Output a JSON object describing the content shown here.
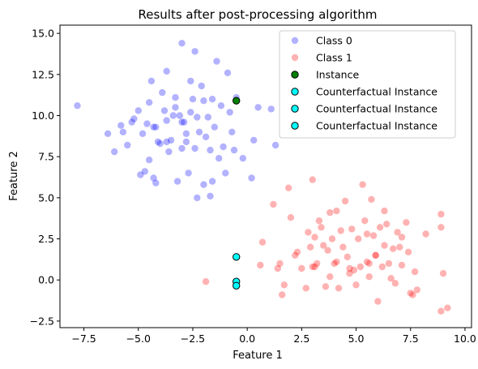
{
  "chart_data": {
    "type": "scatter",
    "title": "Results after post-processing algorithm",
    "xlabel": "Feature 1",
    "ylabel": "Feature 2",
    "xlim": [
      -8.6,
      10.3
    ],
    "ylim": [
      -2.9,
      15.5
    ],
    "xticks": [
      -7.5,
      -5.0,
      -2.5,
      0.0,
      2.5,
      5.0,
      7.5,
      10.0
    ],
    "xtick_labels": [
      "−7.5",
      "−5.0",
      "−2.5",
      "0.0",
      "2.5",
      "5.0",
      "7.5",
      "10.0"
    ],
    "yticks": [
      -2.5,
      0.0,
      2.5,
      5.0,
      7.5,
      10.0,
      12.5,
      15.0
    ],
    "ytick_labels": [
      "−2.5",
      "0.0",
      "2.5",
      "5.0",
      "7.5",
      "10.0",
      "12.5",
      "15.0"
    ],
    "grid": false,
    "legend_position": "top-right",
    "series": [
      {
        "name": "Class 0",
        "color": "#0000ff",
        "alpha": 0.3,
        "edge": "none",
        "points": [
          [
            -7.8,
            10.6
          ],
          [
            -6.4,
            8.9
          ],
          [
            -6.1,
            7.8
          ],
          [
            -5.8,
            9.4
          ],
          [
            -5.7,
            9.0
          ],
          [
            -5.5,
            8.2
          ],
          [
            -5.3,
            9.6
          ],
          [
            -5.2,
            9.8
          ],
          [
            -5.0,
            10.3
          ],
          [
            -4.9,
            6.4
          ],
          [
            -4.8,
            8.9
          ],
          [
            -4.7,
            6.6
          ],
          [
            -4.6,
            9.5
          ],
          [
            -4.5,
            10.8
          ],
          [
            -4.5,
            7.3
          ],
          [
            -4.4,
            12.1
          ],
          [
            -4.3,
            6.2
          ],
          [
            -4.3,
            9.3
          ],
          [
            -4.2,
            5.9
          ],
          [
            -4.1,
            8.4
          ],
          [
            -4.0,
            8.3
          ],
          [
            -3.9,
            11.4
          ],
          [
            -3.8,
            10.3
          ],
          [
            -3.7,
            12.7
          ],
          [
            -3.7,
            9.7
          ],
          [
            -3.6,
            7.8
          ],
          [
            -3.5,
            8.5
          ],
          [
            -3.4,
            10.0
          ],
          [
            -3.3,
            11.1
          ],
          [
            -3.3,
            10.5
          ],
          [
            -3.2,
            6.0
          ],
          [
            -3.1,
            10.0
          ],
          [
            -3.0,
            14.4
          ],
          [
            -3.0,
            8.0
          ],
          [
            -2.9,
            9.6
          ],
          [
            -2.8,
            8.4
          ],
          [
            -2.7,
            6.5
          ],
          [
            -2.6,
            12.1
          ],
          [
            -2.6,
            10.2
          ],
          [
            -2.5,
            11.0
          ],
          [
            -2.4,
            13.9
          ],
          [
            -2.4,
            8.0
          ],
          [
            -2.3,
            9.9
          ],
          [
            -2.3,
            5.0
          ],
          [
            -2.2,
            9.0
          ],
          [
            -2.1,
            11.8
          ],
          [
            -2.0,
            10.9
          ],
          [
            -2.0,
            5.8
          ],
          [
            -1.9,
            8.7
          ],
          [
            -1.8,
            9.9
          ],
          [
            -1.7,
            7.9
          ],
          [
            -1.7,
            5.1
          ],
          [
            -1.6,
            11.0
          ],
          [
            -1.5,
            9.3
          ],
          [
            -1.4,
            13.3
          ],
          [
            -1.3,
            7.4
          ],
          [
            -1.2,
            10.6
          ],
          [
            -1.1,
            8.1
          ],
          [
            -1.0,
            6.5
          ],
          [
            -0.9,
            12.6
          ],
          [
            -0.8,
            10.2
          ],
          [
            -0.7,
            9.0
          ],
          [
            -0.6,
            7.9
          ],
          [
            -0.5,
            11.1
          ],
          [
            -0.2,
            7.4
          ],
          [
            0.2,
            6.2
          ],
          [
            0.3,
            8.5
          ],
          [
            0.5,
            10.5
          ],
          [
            1.1,
            10.4
          ],
          [
            1.3,
            8.2
          ],
          [
            -3.0,
            9.6
          ],
          [
            -4.2,
            9.3
          ],
          [
            -2.8,
            8.9
          ],
          [
            -1.6,
            6.0
          ],
          [
            -3.7,
            8.4
          ]
        ]
      },
      {
        "name": "Class 1",
        "color": "#ff0000",
        "alpha": 0.3,
        "edge": "none",
        "points": [
          [
            -1.9,
            -0.1
          ],
          [
            0.6,
            0.9
          ],
          [
            0.7,
            2.3
          ],
          [
            1.2,
            4.6
          ],
          [
            1.4,
            0.7
          ],
          [
            1.5,
            1.0
          ],
          [
            1.6,
            -0.9
          ],
          [
            1.7,
            -0.3
          ],
          [
            1.9,
            5.6
          ],
          [
            2.0,
            3.8
          ],
          [
            2.2,
            1.5
          ],
          [
            2.3,
            1.7
          ],
          [
            2.5,
            0.7
          ],
          [
            2.7,
            -0.5
          ],
          [
            2.8,
            2.9
          ],
          [
            2.9,
            2.0
          ],
          [
            3.0,
            6.1
          ],
          [
            3.0,
            0.8
          ],
          [
            3.1,
            2.6
          ],
          [
            3.2,
            1.0
          ],
          [
            3.3,
            3.6
          ],
          [
            3.4,
            3.2
          ],
          [
            3.5,
            2.1
          ],
          [
            3.6,
            -0.4
          ],
          [
            3.7,
            1.8
          ],
          [
            3.8,
            4.1
          ],
          [
            3.8,
            0.2
          ],
          [
            3.9,
            2.5
          ],
          [
            4.0,
            1.0
          ],
          [
            4.1,
            4.2
          ],
          [
            4.2,
            -0.5
          ],
          [
            4.3,
            3.0
          ],
          [
            4.4,
            2.0
          ],
          [
            4.5,
            4.8
          ],
          [
            4.6,
            1.4
          ],
          [
            4.7,
            0.4
          ],
          [
            4.8,
            3.1
          ],
          [
            4.9,
            0.6
          ],
          [
            5.0,
            -0.3
          ],
          [
            5.1,
            2.5
          ],
          [
            5.2,
            0.8
          ],
          [
            5.3,
            5.8
          ],
          [
            5.4,
            3.6
          ],
          [
            5.5,
            1.1
          ],
          [
            5.6,
            0.2
          ],
          [
            5.7,
            4.9
          ],
          [
            5.8,
            2.7
          ],
          [
            5.9,
            1.5
          ],
          [
            6.0,
            -1.3
          ],
          [
            6.1,
            3.2
          ],
          [
            6.2,
            0.8
          ],
          [
            6.3,
            2.1
          ],
          [
            6.4,
            3.4
          ],
          [
            6.5,
            1.0
          ],
          [
            6.6,
            0.1
          ],
          [
            6.8,
            -0.2
          ],
          [
            6.9,
            2.9
          ],
          [
            7.0,
            2.0
          ],
          [
            7.1,
            0.9
          ],
          [
            7.3,
            3.5
          ],
          [
            7.4,
            1.7
          ],
          [
            7.5,
            -0.8
          ],
          [
            7.7,
            0.5
          ],
          [
            7.8,
            -0.6
          ],
          [
            8.2,
            2.8
          ],
          [
            8.9,
            4.0
          ],
          [
            8.9,
            -1.9
          ],
          [
            9.0,
            0.4
          ],
          [
            9.2,
            -1.7
          ],
          [
            8.9,
            3.2
          ],
          [
            5.6,
            1.0
          ],
          [
            4.7,
            0.7
          ],
          [
            6.3,
            4.2
          ],
          [
            5.9,
            1.5
          ],
          [
            7.1,
            2.6
          ],
          [
            4.1,
            1.1
          ],
          [
            3.1,
            0.8
          ],
          [
            6.7,
            1.9
          ],
          [
            7.6,
            -0.9
          ],
          [
            5.5,
            2.8
          ]
        ]
      },
      {
        "name": "Instance",
        "color": "#008000",
        "alpha": 1,
        "edge": "#000000",
        "points": [
          [
            -0.5,
            10.9
          ]
        ]
      },
      {
        "name": "Counterfactual Instance",
        "color": "#00ffff",
        "alpha": 1,
        "edge": "#000000",
        "points": [
          [
            -0.5,
            1.4
          ]
        ]
      },
      {
        "name": "Counterfactual Instance",
        "color": "#00ffff",
        "alpha": 1,
        "edge": "#000000",
        "points": [
          [
            -0.5,
            -0.1
          ]
        ]
      },
      {
        "name": "Counterfactual Instance",
        "color": "#00ffff",
        "alpha": 1,
        "edge": "#000000",
        "points": [
          [
            -0.5,
            -0.35
          ]
        ]
      }
    ]
  }
}
